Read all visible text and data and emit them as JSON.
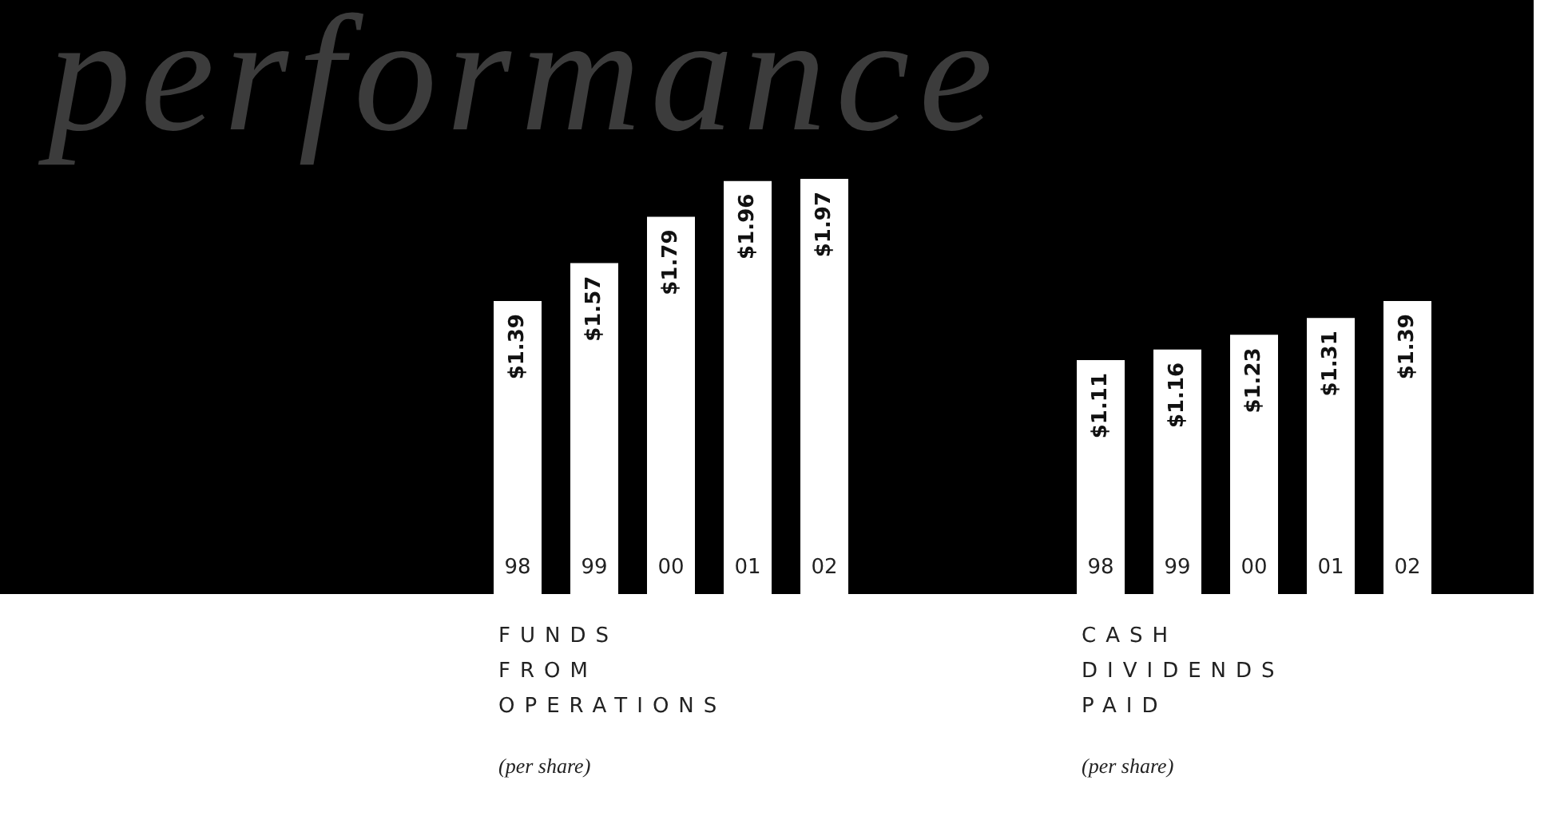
{
  "chart_data": [
    {
      "type": "bar",
      "title": "FUNDS FROM OPERATIONS",
      "subtitle": "(per share)",
      "annotations": [
        "performance"
      ],
      "categories": [
        "98",
        "99",
        "00",
        "01",
        "02"
      ],
      "values": [
        1.39,
        1.57,
        1.79,
        1.96,
        1.97
      ],
      "value_labels": [
        "$1.39",
        "$1.57",
        "$1.79",
        "$1.96",
        "$1.97"
      ],
      "color": "#ffffff"
    },
    {
      "type": "bar",
      "title": "CASH DIVIDENDS PAID",
      "subtitle": "(per share)",
      "categories": [
        "98",
        "99",
        "00",
        "01",
        "02"
      ],
      "values": [
        1.11,
        1.16,
        1.23,
        1.31,
        1.39
      ],
      "value_labels": [
        "$1.11",
        "$1.16",
        "$1.23",
        "$1.31",
        "$1.39"
      ],
      "color": "#ffffff"
    }
  ]
}
